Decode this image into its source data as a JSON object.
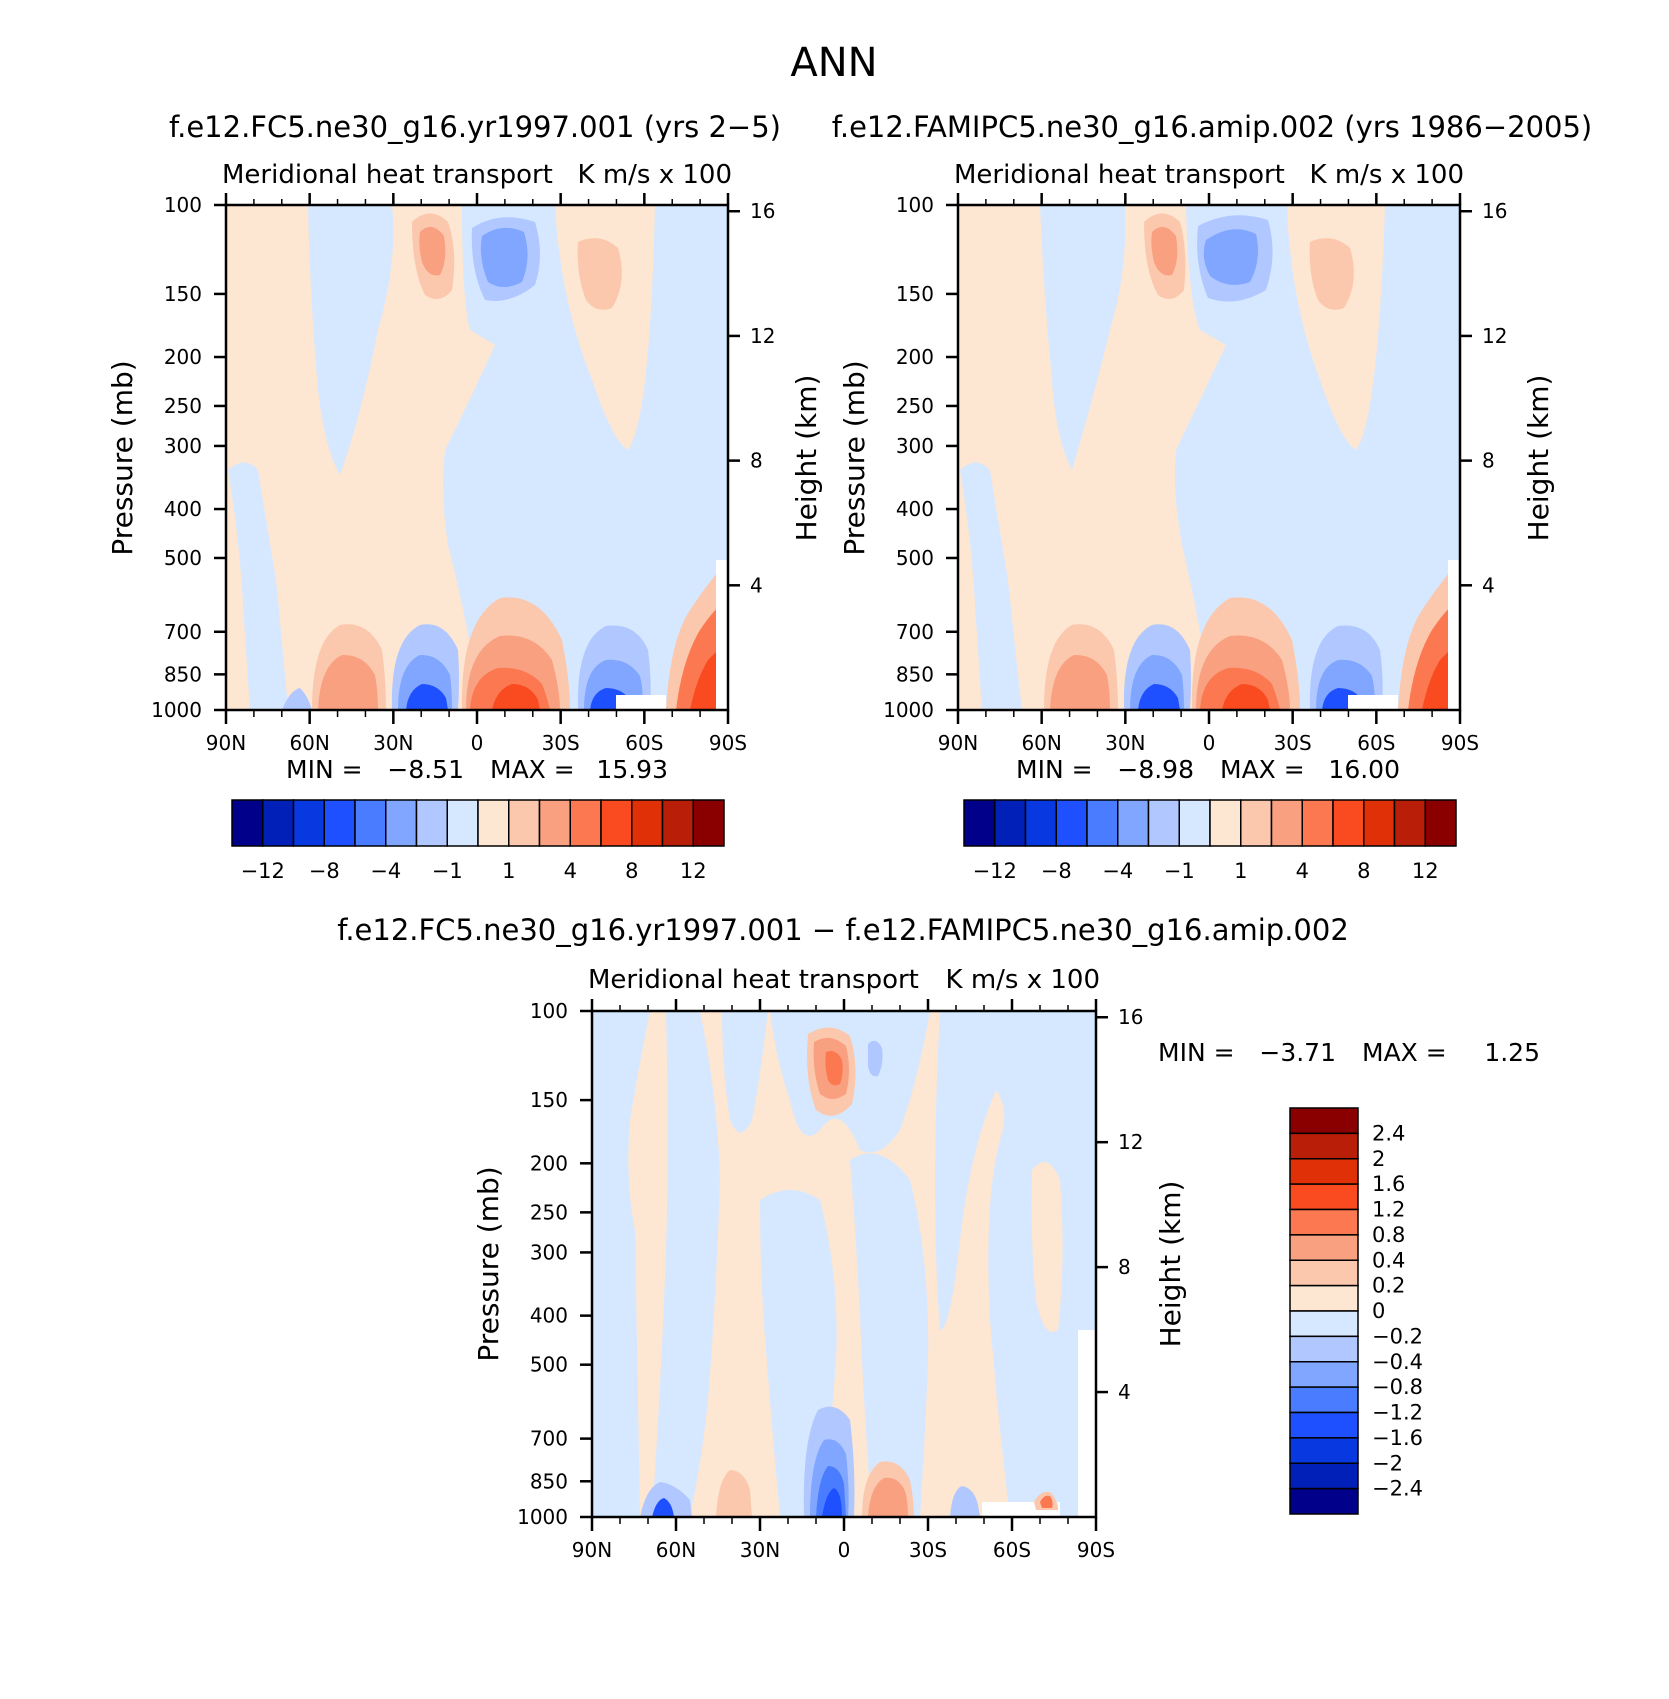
{
  "figure": {
    "title": "ANN"
  },
  "colors": {
    "main_scale": [
      "#00008b",
      "#0020b8",
      "#0838e0",
      "#1e50ff",
      "#4a7cff",
      "#80a6ff",
      "#b0c8ff",
      "#d6e8ff",
      "#fde6d2",
      "#fcc8ad",
      "#f9a081",
      "#fb7850",
      "#fa4a20",
      "#e03008",
      "#b81e08",
      "#8a0000"
    ],
    "diff_scale": [
      "#00008b",
      "#0020b8",
      "#0838e0",
      "#1e50ff",
      "#4a7cff",
      "#80a6ff",
      "#b0c8ff",
      "#d6e8ff",
      "#fde6d2",
      "#fcc8ad",
      "#f9a081",
      "#fb7850",
      "#fa4a20",
      "#e03008",
      "#b81e08",
      "#8a0000"
    ]
  },
  "chart_data": [
    {
      "type": "heatmap",
      "id": "case",
      "title": "f.e12.FC5.ne30_g16.yr1997.001 (yrs 2−5)",
      "subtitle_left": "Meridional heat transport",
      "subtitle_right": "K m/s x 100",
      "ylabel": "Pressure (mb)",
      "ylabel_right": "Height (km)",
      "x_ticks": [
        "90N",
        "60N",
        "30N",
        "0",
        "30S",
        "60S",
        "90S"
      ],
      "x_values": [
        90,
        60,
        30,
        0,
        -30,
        -60,
        -90
      ],
      "y_ticks": [
        "100",
        "150",
        "200",
        "250",
        "300",
        "400",
        "500",
        "700",
        "850",
        "1000"
      ],
      "y_values": [
        100,
        150,
        200,
        250,
        300,
        400,
        500,
        700,
        850,
        1000
      ],
      "ylim": [
        1000,
        100
      ],
      "y_right_ticks": [
        "16",
        "12",
        "8",
        "4"
      ],
      "y_right_values": [
        16,
        12,
        8,
        4
      ],
      "min_label": "MIN =",
      "min_value": "−8.51",
      "max_label": "MAX =",
      "max_value": "15.93",
      "min": -8.51,
      "max": 15.93,
      "colorbar_labels": [
        "−12",
        "−8",
        "−4",
        "−1",
        "1",
        "4",
        "8",
        "12"
      ],
      "colorbar_levels": [
        -12,
        -10,
        -8,
        -6,
        -4,
        -2,
        -1,
        0,
        1,
        2,
        4,
        6,
        8,
        10,
        12
      ]
    },
    {
      "type": "heatmap",
      "id": "control",
      "title": "f.e12.FAMIPC5.ne30_g16.amip.002 (yrs 1986−2005)",
      "subtitle_left": "Meridional heat transport",
      "subtitle_right": "K m/s x 100",
      "ylabel": "Pressure (mb)",
      "ylabel_right": "Height (km)",
      "x_ticks": [
        "90N",
        "60N",
        "30N",
        "0",
        "30S",
        "60S",
        "90S"
      ],
      "x_values": [
        90,
        60,
        30,
        0,
        -30,
        -60,
        -90
      ],
      "y_ticks": [
        "100",
        "150",
        "200",
        "250",
        "300",
        "400",
        "500",
        "700",
        "850",
        "1000"
      ],
      "y_values": [
        100,
        150,
        200,
        250,
        300,
        400,
        500,
        700,
        850,
        1000
      ],
      "ylim": [
        1000,
        100
      ],
      "y_right_ticks": [
        "16",
        "12",
        "8",
        "4"
      ],
      "y_right_values": [
        16,
        12,
        8,
        4
      ],
      "min_label": "MIN =",
      "min_value": "−8.98",
      "max_label": "MAX =",
      "max_value": "16.00",
      "min": -8.98,
      "max": 16.0,
      "colorbar_labels": [
        "−12",
        "−8",
        "−4",
        "−1",
        "1",
        "4",
        "8",
        "12"
      ],
      "colorbar_levels": [
        -12,
        -10,
        -8,
        -6,
        -4,
        -2,
        -1,
        0,
        1,
        2,
        4,
        6,
        8,
        10,
        12
      ]
    },
    {
      "type": "heatmap",
      "id": "diff",
      "title": "f.e12.FC5.ne30_g16.yr1997.001 − f.e12.FAMIPC5.ne30_g16.amip.002",
      "subtitle_left": "Meridional heat transport",
      "subtitle_right": "K m/s x 100",
      "ylabel": "Pressure (mb)",
      "ylabel_right": "Height (km)",
      "x_ticks": [
        "90N",
        "60N",
        "30N",
        "0",
        "30S",
        "60S",
        "90S"
      ],
      "x_values": [
        90,
        60,
        30,
        0,
        -30,
        -60,
        -90
      ],
      "y_ticks": [
        "100",
        "150",
        "200",
        "250",
        "300",
        "400",
        "500",
        "700",
        "850",
        "1000"
      ],
      "y_values": [
        100,
        150,
        200,
        250,
        300,
        400,
        500,
        700,
        850,
        1000
      ],
      "ylim": [
        1000,
        100
      ],
      "y_right_ticks": [
        "16",
        "12",
        "8",
        "4"
      ],
      "y_right_values": [
        16,
        12,
        8,
        4
      ],
      "min_label": "MIN =",
      "min_value": "−3.71",
      "max_label": "MAX =",
      "max_value": "1.25",
      "min": -3.71,
      "max": 1.25,
      "colorbar_labels": [
        "2.4",
        "2",
        "1.6",
        "1.2",
        "0.8",
        "0.4",
        "0.2",
        "0",
        "−0.2",
        "−0.4",
        "−0.8",
        "−1.2",
        "−1.6",
        "−2",
        "−2.4"
      ],
      "colorbar_levels": [
        2.4,
        2,
        1.6,
        1.2,
        0.8,
        0.4,
        0.2,
        0,
        -0.2,
        -0.4,
        -0.8,
        -1.2,
        -1.6,
        -2,
        -2.4
      ]
    }
  ]
}
